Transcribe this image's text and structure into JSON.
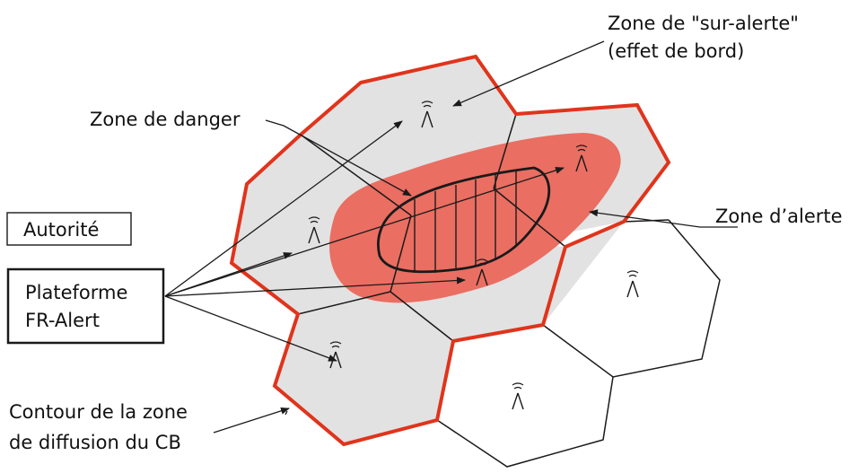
{
  "labels": {
    "sur_alerte_line1": "Zone de \"sur-alerte\"",
    "sur_alerte_line2": "(effet de bord)",
    "danger": "Zone de danger",
    "alerte": "Zone d’alerte",
    "autorite": "Autorité",
    "plateforme_line1": "Plateforme",
    "plateforme_line2": "FR-Alert",
    "contour_line1": "Contour de la zone",
    "contour_line2": "de diffusion du CB"
  },
  "colors": {
    "cell_fill": "#e2e2e2",
    "broadcast_outline": "#e0341c",
    "alert_zone": "#ea6e62",
    "stroke": "#1a1a1a"
  },
  "icons": {
    "antenna": "antenna-icon"
  }
}
